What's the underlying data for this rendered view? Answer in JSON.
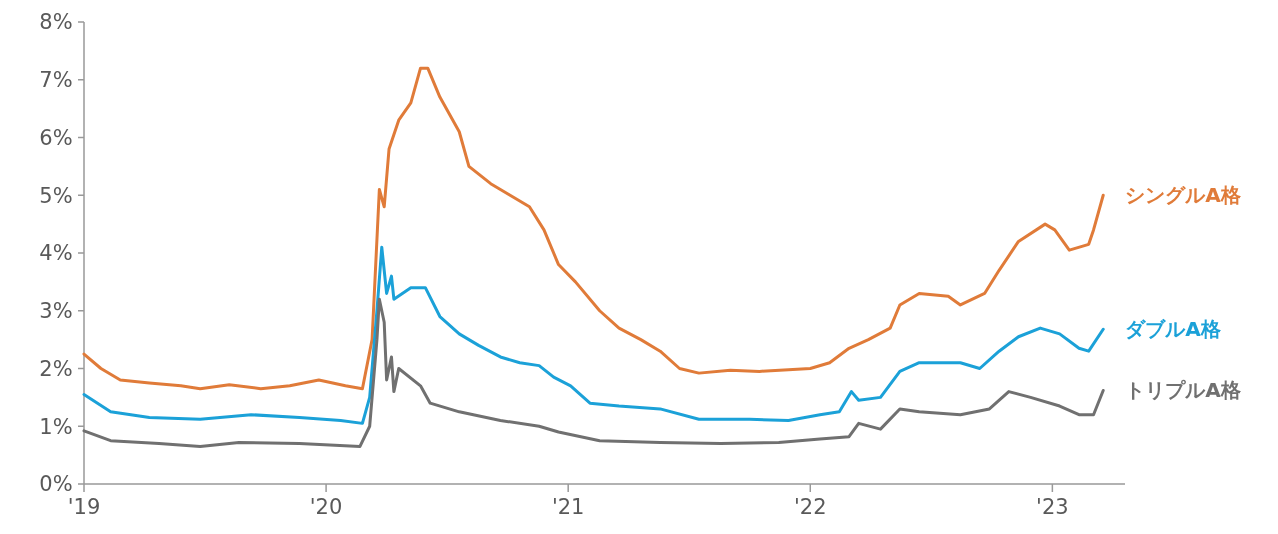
{
  "chart_data": {
    "type": "line",
    "grid": false,
    "line_style": "solid",
    "xlim": [
      2019,
      2023.3
    ],
    "xticks": [
      {
        "value": 2019,
        "label": "'19"
      },
      {
        "value": 2020,
        "label": "'20"
      },
      {
        "value": 2021,
        "label": "'21"
      },
      {
        "value": 2022,
        "label": "'22"
      },
      {
        "value": 2023,
        "label": "'23"
      }
    ],
    "ylim": [
      0,
      8
    ],
    "yticks": [
      {
        "value": 0,
        "label": "0%"
      },
      {
        "value": 1,
        "label": "1%"
      },
      {
        "value": 2,
        "label": "2%"
      },
      {
        "value": 3,
        "label": "3%"
      },
      {
        "value": 4,
        "label": "4%"
      },
      {
        "value": 5,
        "label": "5%"
      },
      {
        "value": 6,
        "label": "6%"
      },
      {
        "value": 7,
        "label": "7%"
      },
      {
        "value": 8,
        "label": "8%"
      }
    ],
    "series": [
      {
        "name": "シングルA格",
        "color": "#e07b39",
        "x": [
          2019.0,
          2019.07,
          2019.15,
          2019.27,
          2019.4,
          2019.48,
          2019.6,
          2019.73,
          2019.85,
          2019.97,
          2020.08,
          2020.15,
          2020.19,
          2020.22,
          2020.24,
          2020.26,
          2020.3,
          2020.35,
          2020.39,
          2020.42,
          2020.47,
          2020.55,
          2020.59,
          2020.68,
          2020.76,
          2020.84,
          2020.9,
          2020.96,
          2021.03,
          2021.13,
          2021.21,
          2021.3,
          2021.38,
          2021.46,
          2021.54,
          2021.67,
          2021.79,
          2021.91,
          2022.0,
          2022.08,
          2022.16,
          2022.24,
          2022.33,
          2022.37,
          2022.45,
          2022.57,
          2022.62,
          2022.72,
          2022.78,
          2022.86,
          2022.97,
          2023.01,
          2023.07,
          2023.15,
          2023.17,
          2023.21
        ],
        "values": [
          2.25,
          2.0,
          1.8,
          1.75,
          1.7,
          1.65,
          1.72,
          1.65,
          1.7,
          1.8,
          1.7,
          1.65,
          2.5,
          5.1,
          4.8,
          5.8,
          6.3,
          6.6,
          7.2,
          7.2,
          6.7,
          6.1,
          5.5,
          5.2,
          5.0,
          4.8,
          4.4,
          3.8,
          3.5,
          3.0,
          2.7,
          2.5,
          2.3,
          2.0,
          1.92,
          1.97,
          1.95,
          1.98,
          2.0,
          2.1,
          2.35,
          2.5,
          2.7,
          3.1,
          3.3,
          3.25,
          3.1,
          3.3,
          3.7,
          4.2,
          4.5,
          4.4,
          4.05,
          4.15,
          4.4,
          5.0
        ]
      },
      {
        "name": "ダブルA格",
        "color": "#1ba1d8",
        "x": [
          2019.0,
          2019.11,
          2019.27,
          2019.48,
          2019.69,
          2019.89,
          2020.06,
          2020.15,
          2020.18,
          2020.21,
          2020.23,
          2020.25,
          2020.27,
          2020.28,
          2020.35,
          2020.41,
          2020.47,
          2020.55,
          2020.63,
          2020.72,
          2020.8,
          2020.88,
          2020.94,
          2021.01,
          2021.09,
          2021.21,
          2021.38,
          2021.54,
          2021.75,
          2021.91,
          2022.04,
          2022.12,
          2022.17,
          2022.2,
          2022.29,
          2022.37,
          2022.45,
          2022.62,
          2022.7,
          2022.78,
          2022.86,
          2022.95,
          2023.03,
          2023.11,
          2023.15,
          2023.21
        ],
        "values": [
          1.55,
          1.25,
          1.15,
          1.12,
          1.2,
          1.15,
          1.1,
          1.05,
          1.5,
          3.0,
          4.1,
          3.3,
          3.6,
          3.2,
          3.4,
          3.4,
          2.9,
          2.6,
          2.4,
          2.2,
          2.1,
          2.05,
          1.85,
          1.7,
          1.4,
          1.35,
          1.3,
          1.12,
          1.12,
          1.1,
          1.2,
          1.25,
          1.6,
          1.45,
          1.5,
          1.95,
          2.1,
          2.1,
          2.0,
          2.3,
          2.55,
          2.7,
          2.6,
          2.35,
          2.3,
          2.68
        ]
      },
      {
        "name": "トリプルA格",
        "color": "#707070",
        "x": [
          2019.0,
          2019.11,
          2019.31,
          2019.48,
          2019.64,
          2019.89,
          2020.14,
          2020.18,
          2020.21,
          2020.22,
          2020.24,
          2020.25,
          2020.27,
          2020.28,
          2020.3,
          2020.39,
          2020.43,
          2020.55,
          2020.72,
          2020.88,
          2020.96,
          2021.13,
          2021.38,
          2021.63,
          2021.87,
          2022.04,
          2022.16,
          2022.2,
          2022.29,
          2022.37,
          2022.45,
          2022.62,
          2022.74,
          2022.82,
          2022.91,
          2023.03,
          2023.11,
          2023.17,
          2023.21
        ],
        "values": [
          0.92,
          0.75,
          0.7,
          0.65,
          0.72,
          0.7,
          0.65,
          1.0,
          2.5,
          3.2,
          2.8,
          1.8,
          2.2,
          1.6,
          2.0,
          1.7,
          1.4,
          1.25,
          1.1,
          1.0,
          0.9,
          0.75,
          0.72,
          0.7,
          0.72,
          0.78,
          0.82,
          1.05,
          0.95,
          1.3,
          1.25,
          1.2,
          1.3,
          1.6,
          1.5,
          1.35,
          1.2,
          1.2,
          1.62
        ]
      }
    ]
  }
}
